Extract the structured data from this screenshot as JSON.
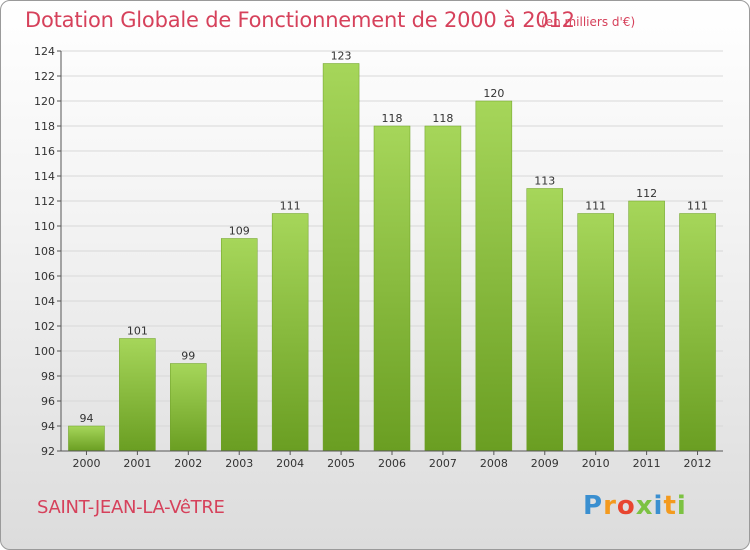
{
  "header": {
    "title": "Dotation Globale de Fonctionnement de 2000 à 2012",
    "subtitle": "(en milliers d'€)"
  },
  "footer": {
    "commune": "SAINT-JEAN-LA-VêTRE",
    "logo_letters": [
      "P",
      "r",
      "o",
      "x",
      "i",
      "t",
      "i"
    ],
    "logo_colors": [
      "#3a8fd0",
      "#f39a1e",
      "#e8452f",
      "#7cc242",
      "#3a8fd0",
      "#f39a1e",
      "#7cc242"
    ]
  },
  "colors": {
    "bar": "#8cc43c",
    "bar_light": "#a6d65a",
    "bar_dark": "#6a9e22",
    "grid": "#d8d8d8",
    "axis": "#555555"
  },
  "chart_data": {
    "type": "bar",
    "categories": [
      "2000",
      "2001",
      "2002",
      "2003",
      "2004",
      "2005",
      "2006",
      "2007",
      "2008",
      "2009",
      "2010",
      "2011",
      "2012"
    ],
    "values": [
      94,
      101,
      99,
      109,
      111,
      123,
      118,
      118,
      120,
      113,
      111,
      112,
      111
    ],
    "ylim": [
      92,
      124
    ],
    "yticks": [
      92,
      94,
      96,
      98,
      100,
      102,
      104,
      106,
      108,
      110,
      112,
      114,
      116,
      118,
      120,
      122,
      124
    ],
    "grid": true,
    "xlabel": "",
    "ylabel": ""
  }
}
